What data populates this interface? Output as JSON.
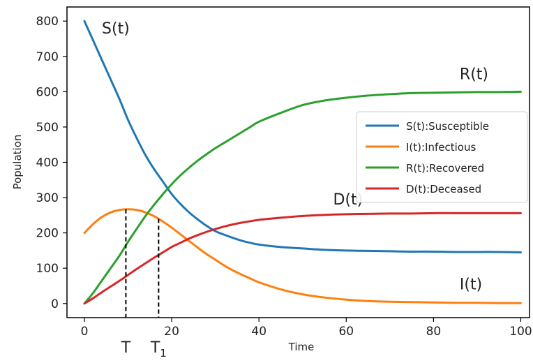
{
  "chart_data": {
    "type": "line",
    "title": "",
    "xlabel": "Time",
    "ylabel": "Population",
    "xlim": [
      -4,
      102
    ],
    "ylim": [
      -40,
      840
    ],
    "xticks": [
      0,
      20,
      40,
      60,
      80,
      100
    ],
    "yticks": [
      0,
      100,
      200,
      300,
      400,
      500,
      600,
      700,
      800
    ],
    "grid": false,
    "legend_position": "center-right",
    "x": [
      0,
      2,
      4,
      6,
      8,
      10,
      12,
      14,
      16,
      18,
      20,
      22,
      24,
      26,
      28,
      30,
      32,
      34,
      36,
      38,
      40,
      45,
      50,
      55,
      60,
      65,
      70,
      75,
      80,
      85,
      90,
      95,
      100
    ],
    "series": [
      {
        "name": "S(t):Susceptible",
        "color": "#1f77b4",
        "values": [
          800,
          745,
          690,
          635,
          580,
          520,
          468,
          420,
          380,
          345,
          310,
          282,
          258,
          238,
          220,
          205,
          195,
          186,
          178,
          172,
          167,
          160,
          156,
          152,
          150,
          149,
          148,
          147,
          147,
          146,
          146,
          146,
          145
        ]
      },
      {
        "name": "I(t):Infectious",
        "color": "#ff7f0e",
        "values": [
          200,
          225,
          245,
          258,
          265,
          267,
          265,
          258,
          247,
          232,
          215,
          196,
          177,
          158,
          140,
          124,
          108,
          94,
          82,
          71,
          60,
          40,
          26,
          17,
          11,
          7,
          5,
          4,
          3,
          2,
          2,
          1,
          1
        ]
      },
      {
        "name": "R(t):Recovered",
        "color": "#2ca02c",
        "values": [
          0,
          30,
          65,
          100,
          135,
          175,
          212,
          248,
          280,
          310,
          338,
          363,
          385,
          405,
          423,
          440,
          455,
          470,
          485,
          500,
          515,
          540,
          562,
          575,
          583,
          589,
          593,
          596,
          597,
          598,
          599,
          599,
          600
        ]
      },
      {
        "name": "D(t):Deceased",
        "color": "#d62728",
        "values": [
          0,
          15,
          32,
          48,
          64,
          81,
          98,
          114,
          130,
          145,
          160,
          172,
          184,
          194,
          203,
          211,
          218,
          224,
          229,
          233,
          237,
          243,
          248,
          251,
          253,
          254,
          255,
          255,
          256,
          256,
          256,
          256,
          256
        ]
      }
    ],
    "curve_labels": [
      {
        "text": "S(t)",
        "x": 4,
        "y": 765
      },
      {
        "text": "R(t)",
        "x": 86,
        "y": 635
      },
      {
        "text": "D(t)",
        "x": 57,
        "y": 280
      },
      {
        "text": "I(t)",
        "x": 86,
        "y": 40
      }
    ],
    "markers": [
      {
        "label": "T",
        "x": 9.5,
        "y": 267
      },
      {
        "label": "T",
        "subscript": "1",
        "x": 17,
        "y": 240
      }
    ]
  }
}
